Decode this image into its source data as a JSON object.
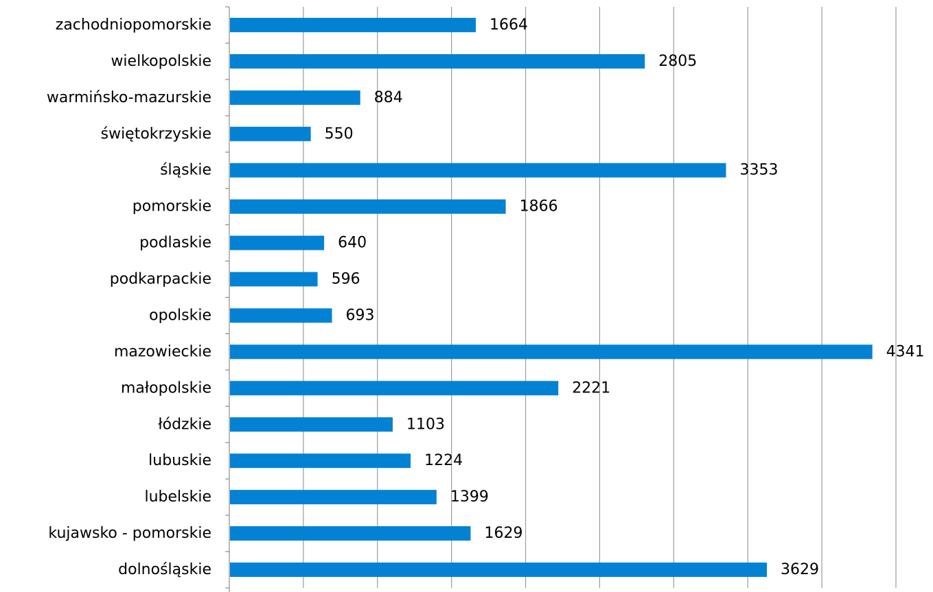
{
  "chart_data": {
    "type": "bar",
    "orientation": "horizontal",
    "categories": [
      "zachodniopomorskie",
      "wielkopolskie",
      "warmińsko-mazurskie",
      "świętokrzyskie",
      "śląskie",
      "pomorskie",
      "podlaskie",
      "podkarpackie",
      "opolskie",
      "mazowieckie",
      "małopolskie",
      "łódzkie",
      "lubuskie",
      "lubelskie",
      "kujawsko - pomorskie",
      "dolnośląskie"
    ],
    "values": [
      1664,
      2805,
      884,
      550,
      3353,
      1866,
      640,
      596,
      693,
      4341,
      2221,
      1103,
      1224,
      1399,
      1629,
      3629
    ],
    "data_labels": [
      "1664",
      "2805",
      "884",
      "550",
      "3353",
      "1866",
      "640",
      "596",
      "693",
      "4341",
      "2221",
      "1103",
      "1224",
      "1399",
      "1629",
      "3629"
    ],
    "xlim": [
      0,
      4500
    ],
    "x_major_unit": 500,
    "grid": true,
    "legend": "none",
    "colors": {
      "bar": "#0382d4",
      "grid": "#9a9a9a",
      "axis": "#8c8c8c"
    }
  }
}
